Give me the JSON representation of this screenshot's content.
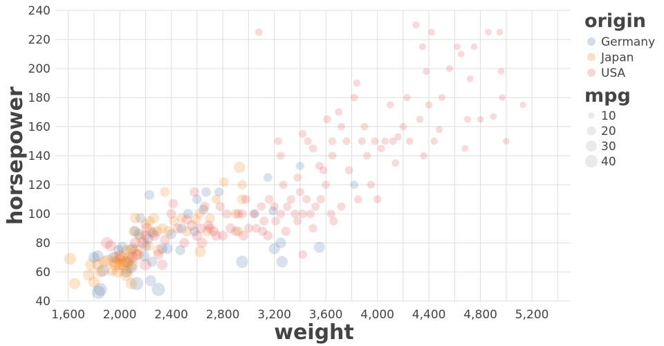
{
  "chart_data": {
    "type": "scatter",
    "xlabel": "weight",
    "ylabel": "horsepower",
    "xlim": [
      1500,
      5500
    ],
    "ylim": [
      40,
      240
    ],
    "x_ticks": [
      1600,
      2000,
      2400,
      2800,
      3200,
      3600,
      4000,
      4400,
      4800,
      5200
    ],
    "x_tick_labels": [
      "1,600",
      "2,000",
      "2,400",
      "2,800",
      "3,200",
      "3,600",
      "4,000",
      "4,400",
      "4,800",
      "5,200"
    ],
    "y_ticks": [
      40,
      60,
      80,
      100,
      120,
      140,
      160,
      180,
      200,
      220,
      240
    ],
    "y_tick_labels": [
      "40",
      "60",
      "80",
      "100",
      "120",
      "140",
      "160",
      "180",
      "200",
      "220",
      "240"
    ],
    "grid": true,
    "color_legend": {
      "title": "origin",
      "entries": [
        {
          "name": "Germany",
          "color": "#4c78a8"
        },
        {
          "name": "Japan",
          "color": "#f58518"
        },
        {
          "name": "USA",
          "color": "#e45756"
        }
      ]
    },
    "size_legend": {
      "title": "mpg",
      "entries": [
        {
          "label": "10",
          "value": 10
        },
        {
          "label": "20",
          "value": 20
        },
        {
          "label": "30",
          "value": 30
        },
        {
          "label": "40",
          "value": 40
        }
      ]
    },
    "series": [
      {
        "name": "Germany",
        "color": "#4c78a8",
        "points": [
          [
            1835,
            46,
            44
          ],
          [
            1850,
            48,
            43
          ],
          [
            1800,
            70,
            30
          ],
          [
            1830,
            71,
            32
          ],
          [
            1870,
            61,
            35
          ],
          [
            1950,
            70,
            29
          ],
          [
            1990,
            75,
            27
          ],
          [
            2020,
            77,
            30
          ],
          [
            2050,
            60,
            31
          ],
          [
            2060,
            67,
            33
          ],
          [
            2090,
            63,
            32
          ],
          [
            2130,
            52,
            44
          ],
          [
            2100,
            76,
            29
          ],
          [
            2120,
            88,
            27
          ],
          [
            2150,
            86,
            28
          ],
          [
            2190,
            71,
            28
          ],
          [
            2200,
            78,
            25
          ],
          [
            2220,
            83,
            27
          ],
          [
            2240,
            54,
            30
          ],
          [
            2230,
            113,
            24
          ],
          [
            2260,
            87,
            26
          ],
          [
            2300,
            48,
            43
          ],
          [
            2330,
            76,
            26
          ],
          [
            2370,
            76,
            28
          ],
          [
            2400,
            86,
            25
          ],
          [
            2470,
            75,
            25
          ],
          [
            2480,
            90,
            26
          ],
          [
            2530,
            100,
            24
          ],
          [
            2580,
            88,
            23
          ],
          [
            2600,
            110,
            22
          ],
          [
            2650,
            103,
            24
          ],
          [
            2670,
            115,
            23
          ],
          [
            2770,
            115,
            20
          ],
          [
            2950,
            67,
            36
          ],
          [
            3050,
            100,
            19
          ],
          [
            3150,
            125,
            19
          ],
          [
            3190,
            102,
            20
          ],
          [
            3200,
            76,
            30
          ],
          [
            3250,
            80,
            28
          ],
          [
            3260,
            67,
            33
          ],
          [
            3400,
            133,
            17
          ],
          [
            3550,
            77,
            30
          ],
          [
            3820,
            120,
            17
          ],
          [
            2250,
            67,
            26
          ],
          [
            2160,
            97,
            24
          ]
        ]
      },
      {
        "name": "Japan",
        "color": "#f58518",
        "points": [
          [
            1615,
            69,
            35
          ],
          [
            1650,
            52,
            32
          ],
          [
            1760,
            58,
            33
          ],
          [
            1775,
            65,
            31
          ],
          [
            1800,
            53,
            31
          ],
          [
            1830,
            65,
            32
          ],
          [
            1850,
            60,
            31
          ],
          [
            1880,
            67,
            34
          ],
          [
            1910,
            68,
            35
          ],
          [
            1940,
            61,
            30
          ],
          [
            1960,
            67,
            32
          ],
          [
            1970,
            65,
            39
          ],
          [
            1975,
            70,
            35
          ],
          [
            1985,
            60,
            32
          ],
          [
            2000,
            65,
            32
          ],
          [
            2000,
            68,
            38
          ],
          [
            2020,
            70,
            31
          ],
          [
            2030,
            65,
            34
          ],
          [
            2040,
            67,
            33
          ],
          [
            2050,
            75,
            28
          ],
          [
            2050,
            58,
            38
          ],
          [
            2060,
            62,
            34
          ],
          [
            2070,
            70,
            30
          ],
          [
            2080,
            68,
            31
          ],
          [
            2085,
            75,
            33
          ],
          [
            2090,
            52,
            32
          ],
          [
            2100,
            65,
            30
          ],
          [
            2110,
            88,
            27
          ],
          [
            2120,
            97,
            27
          ],
          [
            2130,
            75,
            34
          ],
          [
            2145,
            72,
            30
          ],
          [
            2160,
            84,
            27
          ],
          [
            2200,
            93,
            24
          ],
          [
            2220,
            78,
            28
          ],
          [
            2230,
            95,
            25
          ],
          [
            2240,
            88,
            27
          ],
          [
            2265,
            97,
            26
          ],
          [
            2290,
            88,
            27
          ],
          [
            2300,
            75,
            32
          ],
          [
            2330,
            90,
            26
          ],
          [
            2380,
            88,
            28
          ],
          [
            2420,
            95,
            25
          ],
          [
            2480,
            97,
            24
          ],
          [
            2520,
            88,
            26
          ],
          [
            2590,
            96,
            26
          ],
          [
            2620,
            100,
            25
          ],
          [
            2680,
            88,
            25
          ],
          [
            2700,
            97,
            24
          ],
          [
            2750,
            110,
            22
          ],
          [
            2810,
            122,
            22
          ],
          [
            2900,
            100,
            24
          ],
          [
            2930,
            132,
            32
          ],
          [
            2950,
            120,
            22
          ],
          [
            2950,
            110,
            24
          ],
          [
            2920,
            88,
            24
          ],
          [
            2625,
            74,
            32
          ],
          [
            2350,
            115,
            24
          ]
        ]
      },
      {
        "name": "USA",
        "color": "#e45756",
        "points": [
          [
            1900,
            80,
            33
          ],
          [
            1930,
            78,
            31
          ],
          [
            2000,
            71,
            30
          ],
          [
            2100,
            70,
            31
          ],
          [
            2120,
            80,
            30
          ],
          [
            2130,
            72,
            29
          ],
          [
            2180,
            80,
            29
          ],
          [
            2200,
            85,
            27
          ],
          [
            2200,
            65,
            33
          ],
          [
            2210,
            90,
            28
          ],
          [
            2270,
            85,
            27
          ],
          [
            2300,
            72,
            25
          ],
          [
            2330,
            65,
            28
          ],
          [
            2350,
            82,
            24
          ],
          [
            2400,
            100,
            23
          ],
          [
            2415,
            107,
            22
          ],
          [
            2450,
            90,
            25
          ],
          [
            2500,
            80,
            24
          ],
          [
            2520,
            96,
            24
          ],
          [
            2560,
            92,
            26
          ],
          [
            2580,
            115,
            22
          ],
          [
            2600,
            85,
            26
          ],
          [
            2630,
            90,
            26
          ],
          [
            2640,
            80,
            27
          ],
          [
            2660,
            105,
            23
          ],
          [
            2690,
            92,
            25
          ],
          [
            2700,
            90,
            24
          ],
          [
            2730,
            88,
            25
          ],
          [
            2750,
            85,
            26
          ],
          [
            2780,
            105,
            21
          ],
          [
            2800,
            85,
            25
          ],
          [
            2830,
            100,
            22
          ],
          [
            2860,
            90,
            24
          ],
          [
            2900,
            88,
            23
          ],
          [
            2920,
            100,
            21
          ],
          [
            2950,
            100,
            20
          ],
          [
            2960,
            85,
            25
          ],
          [
            2980,
            110,
            20
          ],
          [
            3000,
            90,
            22
          ],
          [
            3040,
            100,
            19
          ],
          [
            3060,
            90,
            20
          ],
          [
            3100,
            105,
            18
          ],
          [
            3110,
            88,
            21
          ],
          [
            3120,
            95,
            20
          ],
          [
            3150,
            85,
            23
          ],
          [
            3160,
            110,
            19
          ],
          [
            3200,
            105,
            18
          ],
          [
            3210,
            95,
            19
          ],
          [
            3230,
            150,
            15
          ],
          [
            3250,
            100,
            18
          ],
          [
            3270,
            120,
            17
          ],
          [
            3290,
            88,
            21
          ],
          [
            3300,
            105,
            18
          ],
          [
            3330,
            110,
            18
          ],
          [
            3360,
            100,
            17
          ],
          [
            3380,
            95,
            18
          ],
          [
            3400,
            115,
            17
          ],
          [
            3420,
            100,
            18
          ],
          [
            3450,
            110,
            17
          ],
          [
            3460,
            150,
            15
          ],
          [
            3480,
            100,
            18
          ],
          [
            3500,
            145,
            16
          ],
          [
            3520,
            105,
            18
          ],
          [
            3560,
            110,
            17
          ],
          [
            3580,
            130,
            16
          ],
          [
            3610,
            165,
            15
          ],
          [
            3640,
            100,
            17
          ],
          [
            3650,
            140,
            16
          ],
          [
            3700,
            170,
            14
          ],
          [
            3720,
            105,
            17
          ],
          [
            3760,
            150,
            15
          ],
          [
            3780,
            130,
            16
          ],
          [
            3820,
            180,
            14
          ],
          [
            3850,
            110,
            16
          ],
          [
            3880,
            150,
            15
          ],
          [
            3900,
            160,
            14
          ],
          [
            3920,
            140,
            15
          ],
          [
            3950,
            120,
            15
          ],
          [
            3980,
            150,
            14
          ],
          [
            4000,
            110,
            16
          ],
          [
            4030,
            145,
            14
          ],
          [
            4060,
            150,
            13
          ],
          [
            4100,
            175,
            13
          ],
          [
            4120,
            150,
            14
          ],
          [
            4140,
            135,
            14
          ],
          [
            4160,
            153,
            13
          ],
          [
            4200,
            160,
            13
          ],
          [
            4230,
            180,
            13
          ],
          [
            4250,
            150,
            13
          ],
          [
            4300,
            230,
            13
          ],
          [
            4330,
            165,
            13
          ],
          [
            4350,
            215,
            12
          ],
          [
            4360,
            140,
            13
          ],
          [
            4380,
            198,
            12
          ],
          [
            4400,
            175,
            13
          ],
          [
            4420,
            225,
            12
          ],
          [
            4440,
            150,
            13
          ],
          [
            4480,
            158,
            12
          ],
          [
            4500,
            180,
            12
          ],
          [
            4560,
            200,
            12
          ],
          [
            4620,
            215,
            11
          ],
          [
            4650,
            210,
            11
          ],
          [
            4680,
            145,
            12
          ],
          [
            4700,
            165,
            12
          ],
          [
            4750,
            215,
            11
          ],
          [
            4800,
            165,
            11
          ],
          [
            4860,
            225,
            11
          ],
          [
            4950,
            225,
            11
          ],
          [
            4960,
            198,
            11
          ],
          [
            4970,
            180,
            11
          ],
          [
            5000,
            150,
            11
          ],
          [
            5130,
            175,
            10
          ],
          [
            4900,
            167,
            11
          ],
          [
            3080,
            225,
            14
          ],
          [
            3840,
            190,
            13
          ],
          [
            3720,
            160,
            14
          ],
          [
            3420,
            155,
            15
          ],
          [
            3550,
            133,
            16
          ],
          [
            3650,
            150,
            15
          ],
          [
            3250,
            140,
            16
          ],
          [
            3380,
            125,
            16
          ],
          [
            3500,
            90,
            18
          ],
          [
            3600,
            120,
            16
          ],
          [
            3420,
            72,
            19
          ],
          [
            3660,
            95,
            18
          ],
          [
            4720,
            193,
            11
          ]
        ]
      }
    ]
  }
}
